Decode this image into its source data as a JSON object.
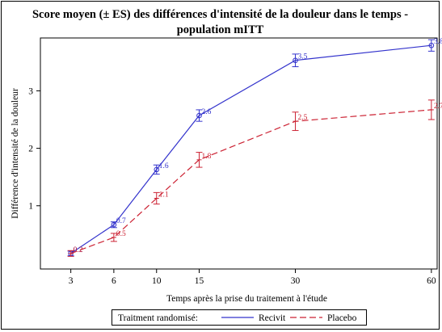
{
  "chart_data": {
    "type": "line",
    "title_line1": "Score moyen (± ES) des différences d'intensité de la douleur dans le temps -",
    "title_line2": "population mITT",
    "xlabel": "Temps après la prise du traitement à l'étude",
    "ylabel": "Différence d'intensité de la douleur",
    "x_ticks": [
      3,
      6,
      10,
      15,
      30,
      60
    ],
    "y_ticks": [
      1,
      2,
      3
    ],
    "xlim": [
      1.5,
      61.5
    ],
    "ylim": [
      -0.1,
      3.92
    ],
    "x_scale": "sqrt",
    "legend_title": "Traitment randomisé:",
    "legend_position": "bottom",
    "series": [
      {
        "name": "Recivit",
        "color": "#3333cc",
        "dash": "solid",
        "marker": "circle",
        "x": [
          3,
          6,
          10,
          15,
          30,
          60
        ],
        "y": [
          0.17,
          0.67,
          1.63,
          2.57,
          3.53,
          3.79
        ],
        "se": [
          0.04,
          0.05,
          0.08,
          0.1,
          0.11,
          0.1
        ],
        "labels": [
          "0.2",
          "0.7",
          "1.6",
          "2.6",
          "3.5",
          "3.8"
        ]
      },
      {
        "name": "Placebo",
        "color": "#cc2233",
        "dash": "dashed",
        "marker": "bar",
        "x": [
          3,
          6,
          10,
          15,
          30,
          60
        ],
        "y": [
          0.17,
          0.45,
          1.13,
          1.8,
          2.47,
          2.67
        ],
        "se": [
          0.05,
          0.07,
          0.1,
          0.13,
          0.16,
          0.17
        ],
        "labels": [
          "0.2",
          "0.5",
          "1.1",
          "1.8",
          "2.5",
          "2.7"
        ]
      }
    ]
  }
}
